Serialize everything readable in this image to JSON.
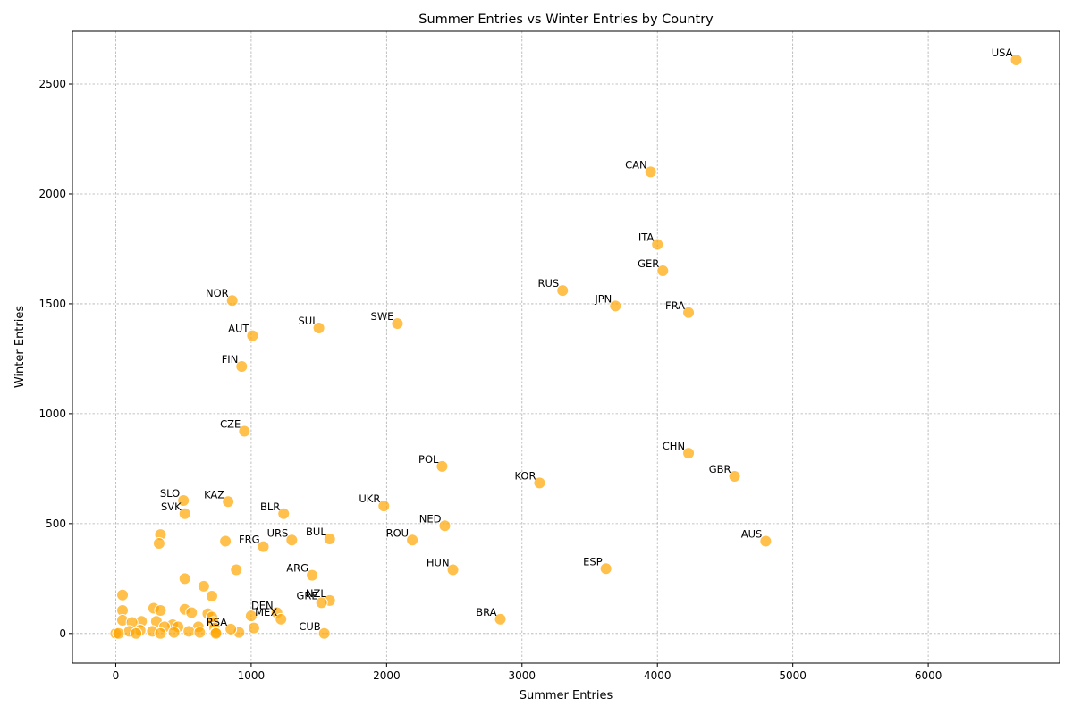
{
  "chart_data": {
    "type": "scatter",
    "title": "Summer Entries vs Winter Entries by Country",
    "xlabel": "Summer Entries",
    "ylabel": "Winter Entries",
    "xlim": [
      -320,
      6970
    ],
    "ylim": [
      -135,
      2740
    ],
    "xticks": [
      0,
      1000,
      2000,
      3000,
      4000,
      5000,
      6000
    ],
    "yticks": [
      0,
      500,
      1000,
      1500,
      2000,
      2500
    ],
    "grid": true,
    "marker_color": "#FFA500",
    "labeled_points": [
      {
        "label": "USA",
        "x": 6650,
        "y": 2610
      },
      {
        "label": "CAN",
        "x": 3950,
        "y": 2100
      },
      {
        "label": "ITA",
        "x": 4000,
        "y": 1770
      },
      {
        "label": "GER",
        "x": 4040,
        "y": 1650
      },
      {
        "label": "RUS",
        "x": 3300,
        "y": 1560
      },
      {
        "label": "JPN",
        "x": 3690,
        "y": 1490
      },
      {
        "label": "FRA",
        "x": 4230,
        "y": 1460
      },
      {
        "label": "NOR",
        "x": 860,
        "y": 1515
      },
      {
        "label": "SUI",
        "x": 1500,
        "y": 1390
      },
      {
        "label": "SWE",
        "x": 2080,
        "y": 1410
      },
      {
        "label": "AUT",
        "x": 1010,
        "y": 1355
      },
      {
        "label": "FIN",
        "x": 930,
        "y": 1215
      },
      {
        "label": "CZE",
        "x": 950,
        "y": 920
      },
      {
        "label": "CHN",
        "x": 4230,
        "y": 820
      },
      {
        "label": "POL",
        "x": 2410,
        "y": 760
      },
      {
        "label": "GBR",
        "x": 4570,
        "y": 715
      },
      {
        "label": "KOR",
        "x": 3130,
        "y": 685
      },
      {
        "label": "SLO",
        "x": 500,
        "y": 605
      },
      {
        "label": "KAZ",
        "x": 830,
        "y": 600
      },
      {
        "label": "UKR",
        "x": 1980,
        "y": 580
      },
      {
        "label": "BLR",
        "x": 1240,
        "y": 545
      },
      {
        "label": "SVK",
        "x": 510,
        "y": 545
      },
      {
        "label": "NED",
        "x": 2430,
        "y": 490
      },
      {
        "label": "BUL",
        "x": 1580,
        "y": 430
      },
      {
        "label": "URS",
        "x": 1300,
        "y": 425
      },
      {
        "label": "ROU",
        "x": 2190,
        "y": 425
      },
      {
        "label": "AUS",
        "x": 4800,
        "y": 420
      },
      {
        "label": "FRG",
        "x": 1090,
        "y": 395
      },
      {
        "label": "HUN",
        "x": 2490,
        "y": 290
      },
      {
        "label": "ESP",
        "x": 3620,
        "y": 295
      },
      {
        "label": "ARG",
        "x": 1450,
        "y": 265
      },
      {
        "label": "NZL",
        "x": 1580,
        "y": 150
      },
      {
        "label": "GRE",
        "x": 1520,
        "y": 140
      },
      {
        "label": "DEN",
        "x": 1190,
        "y": 95
      },
      {
        "label": "MEX",
        "x": 1220,
        "y": 65
      },
      {
        "label": "BRA",
        "x": 2840,
        "y": 65
      },
      {
        "label": "RSA",
        "x": 850,
        "y": 20
      },
      {
        "label": "CUB",
        "x": 1540,
        "y": 0
      }
    ],
    "unlabeled_points": [
      {
        "x": 810,
        "y": 420
      },
      {
        "x": 330,
        "y": 450
      },
      {
        "x": 320,
        "y": 410
      },
      {
        "x": 890,
        "y": 290
      },
      {
        "x": 510,
        "y": 250
      },
      {
        "x": 650,
        "y": 215
      },
      {
        "x": 50,
        "y": 175
      },
      {
        "x": 710,
        "y": 170
      },
      {
        "x": 280,
        "y": 115
      },
      {
        "x": 330,
        "y": 105
      },
      {
        "x": 510,
        "y": 110
      },
      {
        "x": 560,
        "y": 95
      },
      {
        "x": 680,
        "y": 90
      },
      {
        "x": 50,
        "y": 105
      },
      {
        "x": 1000,
        "y": 80
      },
      {
        "x": 710,
        "y": 75
      },
      {
        "x": 50,
        "y": 60
      },
      {
        "x": 190,
        "y": 55
      },
      {
        "x": 300,
        "y": 55
      },
      {
        "x": 120,
        "y": 50
      },
      {
        "x": 720,
        "y": 50
      },
      {
        "x": 420,
        "y": 40
      },
      {
        "x": 610,
        "y": 30
      },
      {
        "x": 360,
        "y": 30
      },
      {
        "x": 460,
        "y": 30
      },
      {
        "x": 730,
        "y": 25
      },
      {
        "x": 1020,
        "y": 25
      },
      {
        "x": 180,
        "y": 15
      },
      {
        "x": 540,
        "y": 10
      },
      {
        "x": 100,
        "y": 10
      },
      {
        "x": 270,
        "y": 10
      },
      {
        "x": 430,
        "y": 5
      },
      {
        "x": 620,
        "y": 5
      },
      {
        "x": 740,
        "y": 5
      },
      {
        "x": 910,
        "y": 5
      },
      {
        "x": 0,
        "y": 0
      },
      {
        "x": 20,
        "y": 0
      },
      {
        "x": 150,
        "y": 0
      },
      {
        "x": 330,
        "y": 0
      },
      {
        "x": 740,
        "y": 0
      }
    ]
  }
}
